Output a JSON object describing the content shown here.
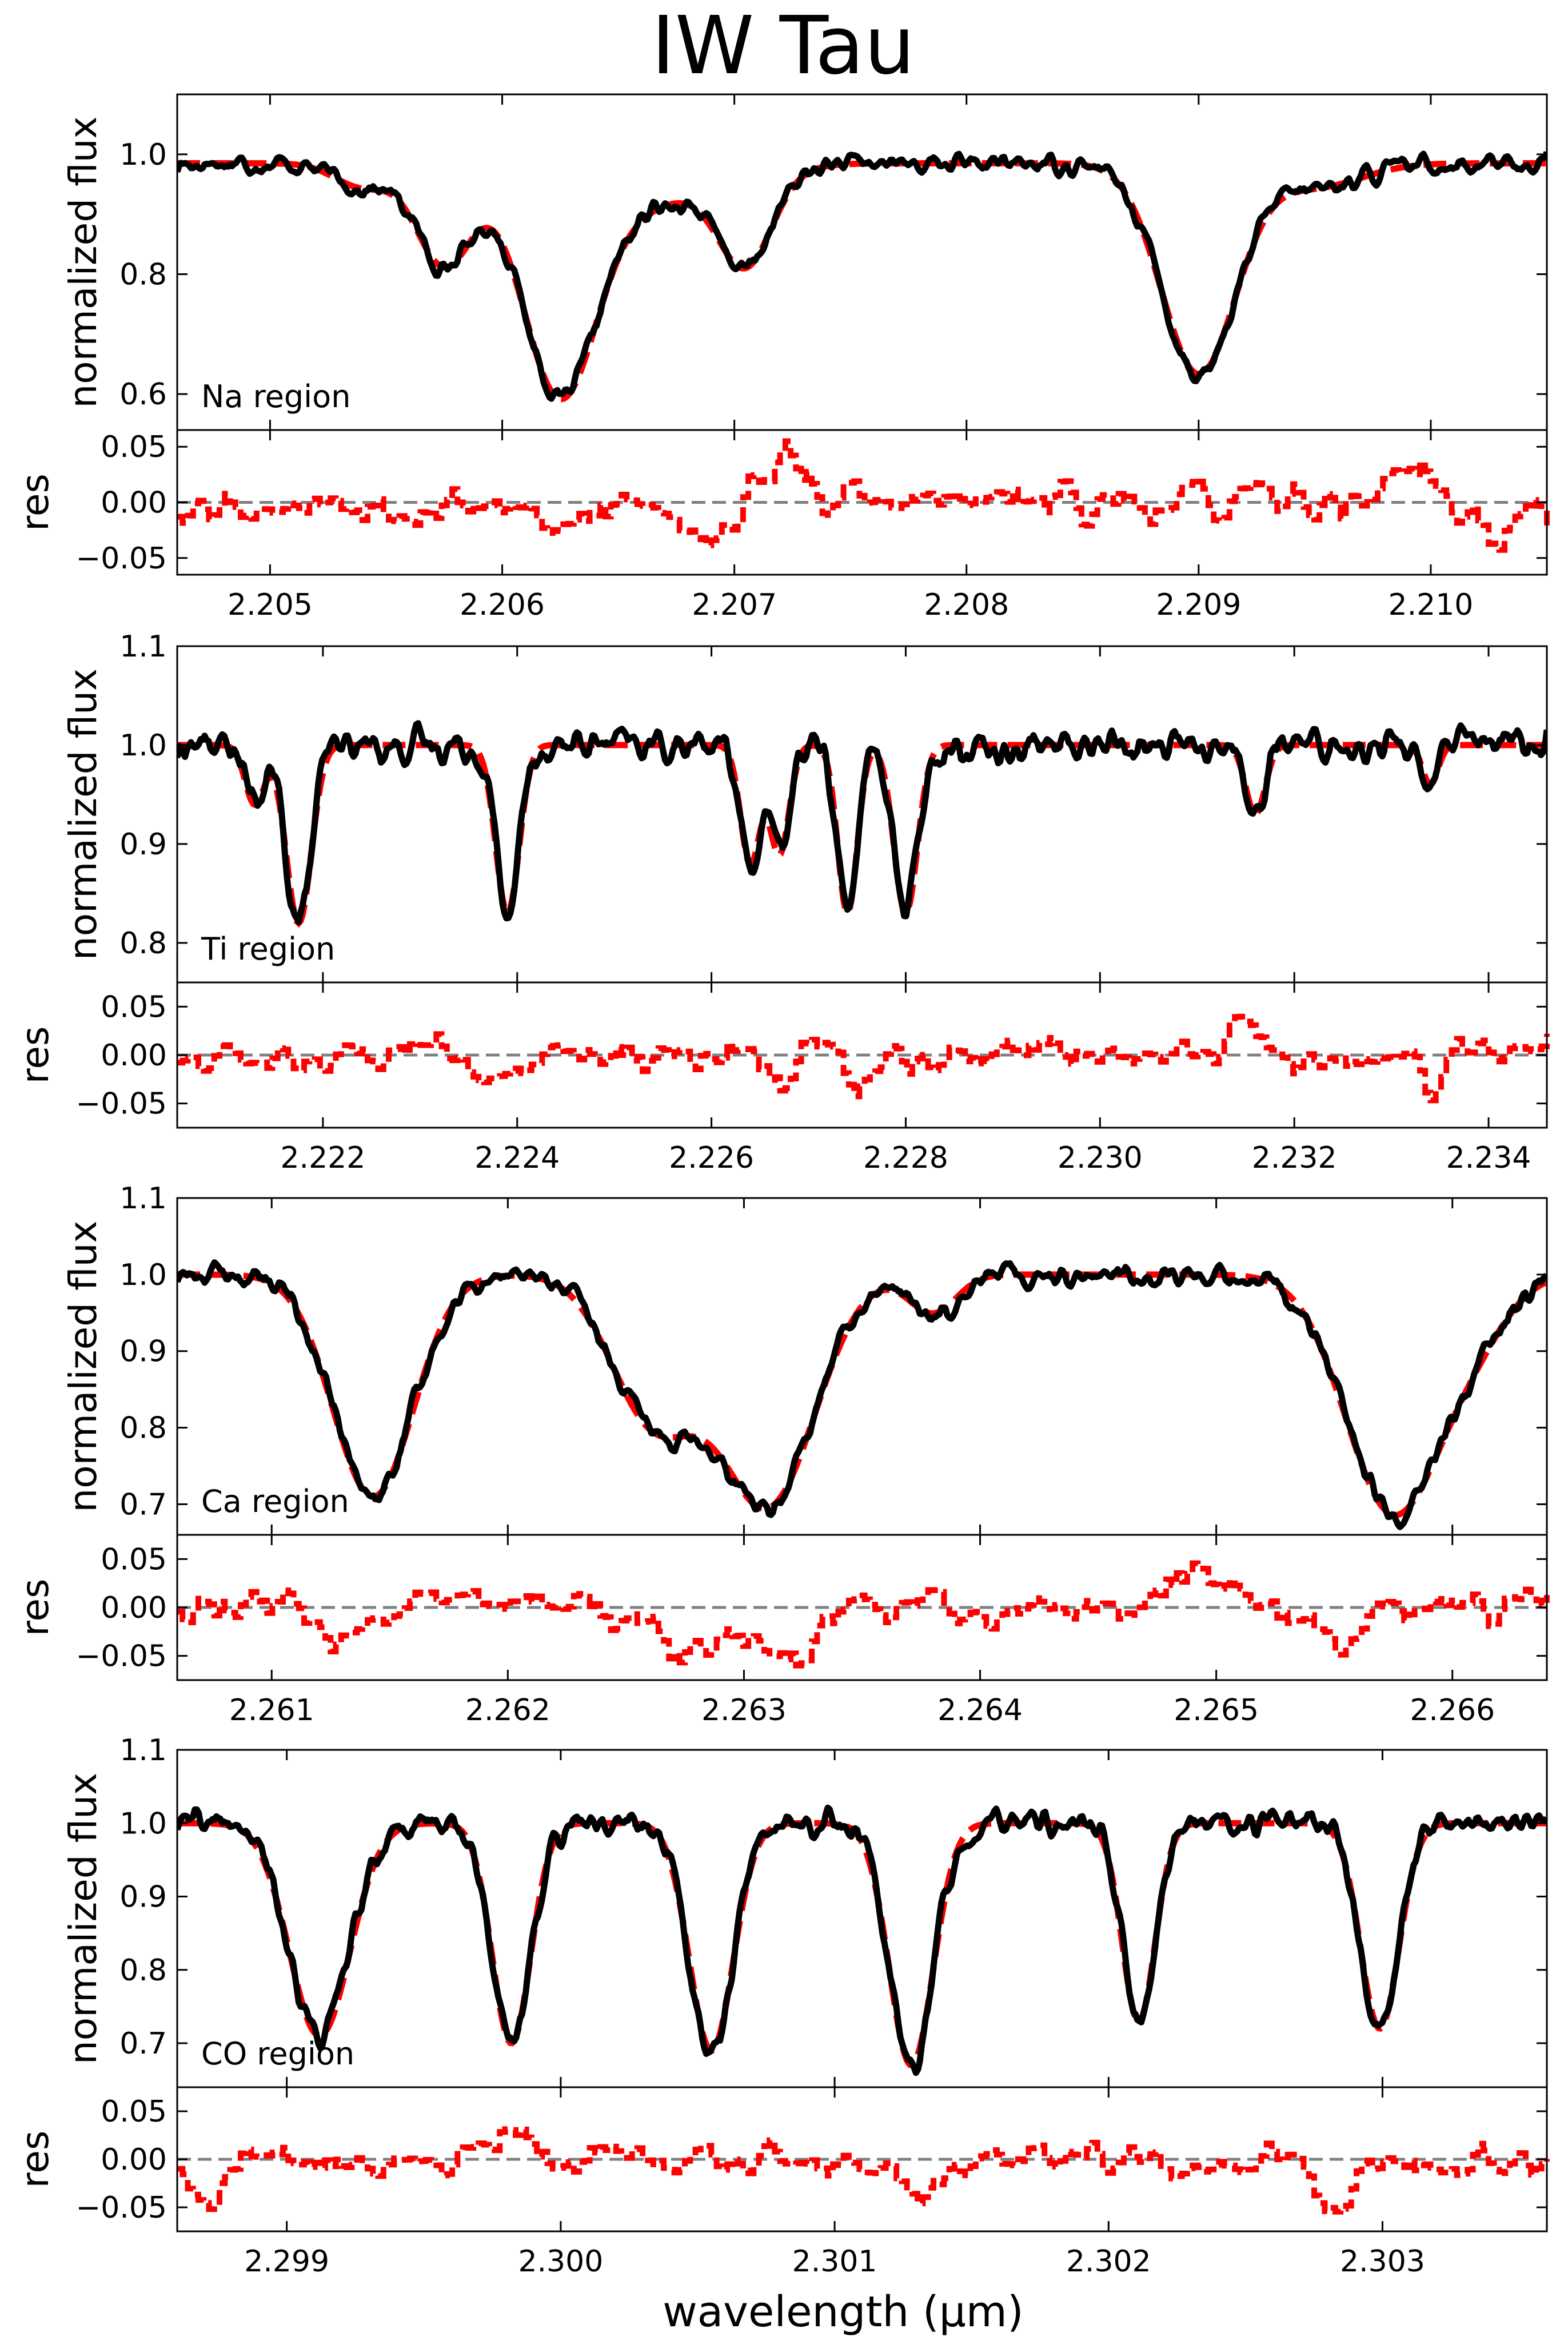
{
  "figure": {
    "title": "IW Tau",
    "xlabel": "wavelength (μm)"
  },
  "colors": {
    "data": "#000000",
    "model": "#ff0000",
    "zero_line": "#808080",
    "axes": "#000000"
  },
  "chart_data": [
    {
      "type": "line",
      "panel": "Na region",
      "region_label": "Na region",
      "ylabel": "normalized flux",
      "res_ylabel": "res",
      "xlim": [
        2.2046,
        2.2105
      ],
      "ylim": [
        0.54,
        1.1
      ],
      "yticks": [
        0.6,
        0.8,
        1.0
      ],
      "ytick_labels": [
        "0.6",
        "0.8",
        "1.0"
      ],
      "xticks": [
        2.205,
        2.206,
        2.207,
        2.208,
        2.209,
        2.21
      ],
      "xtick_labels": [
        "2.205",
        "2.206",
        "2.207",
        "2.208",
        "2.209",
        "2.210"
      ],
      "res_ylim": [
        -0.065,
        0.065
      ],
      "res_yticks": [
        0.05,
        0.0,
        -0.05
      ],
      "res_ytick_labels": [
        "0.05",
        "0.00",
        "−0.05"
      ],
      "baseline": 0.985,
      "lines": [
        {
          "center": 2.2054,
          "depth": 0.04,
          "width": 0.00012
        },
        {
          "center": 2.20575,
          "depth": 0.17,
          "width": 0.00012
        },
        {
          "center": 2.20625,
          "depth": 0.39,
          "width": 0.00016
        },
        {
          "center": 2.2066,
          "depth": 0.05,
          "width": 0.00015
        },
        {
          "center": 2.20705,
          "depth": 0.13,
          "width": 0.00011
        },
        {
          "center": 2.20695,
          "depth": 0.05,
          "width": 0.0002
        },
        {
          "center": 2.209,
          "depth": 0.35,
          "width": 0.00016
        },
        {
          "center": 2.2095,
          "depth": 0.04,
          "width": 0.0002
        }
      ],
      "res_features": [
        {
          "center": 2.20625,
          "amp": -0.03,
          "width": 0.0001
        },
        {
          "center": 2.2072,
          "amp": 0.04,
          "width": 0.0001
        },
        {
          "center": 2.2069,
          "amp": -0.025,
          "width": 0.00012
        },
        {
          "center": 2.2099,
          "amp": 0.03,
          "width": 0.0001
        },
        {
          "center": 2.2103,
          "amp": -0.03,
          "width": 0.0001
        }
      ]
    },
    {
      "type": "line",
      "panel": "Ti region",
      "region_label": "Ti region",
      "ylabel": "normalized flux",
      "res_ylabel": "res",
      "xlim": [
        2.2205,
        2.2346
      ],
      "ylim": [
        0.76,
        1.1
      ],
      "yticks": [
        0.8,
        0.9,
        1.0,
        1.1
      ],
      "ytick_labels": [
        "0.8",
        "0.9",
        "1.0",
        "1.1"
      ],
      "xticks": [
        2.222,
        2.224,
        2.226,
        2.228,
        2.23,
        2.232,
        2.234
      ],
      "xtick_labels": [
        "2.222",
        "2.224",
        "2.226",
        "2.228",
        "2.230",
        "2.232",
        "2.234"
      ],
      "res_ylim": [
        -0.075,
        0.075
      ],
      "res_yticks": [
        0.05,
        0.0,
        -0.05
      ],
      "res_ytick_labels": [
        "0.05",
        "0.00",
        "−0.05"
      ],
      "baseline": 1.0,
      "lines": [
        {
          "center": 2.2213,
          "depth": 0.06,
          "width": 0.0001
        },
        {
          "center": 2.22175,
          "depth": 0.18,
          "width": 0.00013
        },
        {
          "center": 2.2239,
          "depth": 0.17,
          "width": 0.00012
        },
        {
          "center": 2.2264,
          "depth": 0.12,
          "width": 0.0001
        },
        {
          "center": 2.2267,
          "depth": 0.11,
          "width": 0.0001
        },
        {
          "center": 2.2274,
          "depth": 0.17,
          "width": 0.0001
        },
        {
          "center": 2.228,
          "depth": 0.17,
          "width": 0.00012
        },
        {
          "center": 2.2316,
          "depth": 0.07,
          "width": 0.0001
        },
        {
          "center": 2.2334,
          "depth": 0.04,
          "width": 8e-05
        }
      ],
      "res_features": [
        {
          "center": 2.2237,
          "amp": -0.04,
          "width": 0.0001
        },
        {
          "center": 2.2267,
          "amp": -0.04,
          "width": 0.0001
        },
        {
          "center": 2.2275,
          "amp": -0.05,
          "width": 0.0001
        },
        {
          "center": 2.2314,
          "amp": 0.04,
          "width": 0.0001
        },
        {
          "center": 2.2334,
          "amp": -0.05,
          "width": 8e-05
        }
      ]
    },
    {
      "type": "line",
      "panel": "Ca region",
      "region_label": "Ca region",
      "ylabel": "normalized flux",
      "res_ylabel": "res",
      "xlim": [
        2.2606,
        2.2664
      ],
      "ylim": [
        0.66,
        1.1
      ],
      "yticks": [
        0.7,
        0.8,
        0.9,
        1.0,
        1.1
      ],
      "ytick_labels": [
        "0.7",
        "0.8",
        "0.9",
        "1.0",
        "1.1"
      ],
      "xticks": [
        2.261,
        2.262,
        2.263,
        2.264,
        2.265,
        2.266
      ],
      "xtick_labels": [
        "2.261",
        "2.262",
        "2.263",
        "2.264",
        "2.265",
        "2.266"
      ],
      "res_ylim": [
        -0.075,
        0.075
      ],
      "res_yticks": [
        0.05,
        0.0,
        -0.05
      ],
      "res_ytick_labels": [
        "0.05",
        "0.00",
        "−0.05"
      ],
      "baseline": 1.0,
      "lines": [
        {
          "center": 2.26143,
          "depth": 0.29,
          "width": 0.00017
        },
        {
          "center": 2.26262,
          "depth": 0.19,
          "width": 0.00018
        },
        {
          "center": 2.2631,
          "depth": 0.3,
          "width": 0.0002
        },
        {
          "center": 2.2638,
          "depth": 0.05,
          "width": 0.0001
        },
        {
          "center": 2.26575,
          "depth": 0.31,
          "width": 0.0002
        },
        {
          "center": 2.2661,
          "depth": 0.06,
          "width": 0.00015
        }
      ],
      "res_features": [
        {
          "center": 2.2613,
          "amp": -0.04,
          "width": 0.0001
        },
        {
          "center": 2.2628,
          "amp": -0.05,
          "width": 0.00015
        },
        {
          "center": 2.2632,
          "amp": -0.05,
          "width": 0.0001
        },
        {
          "center": 2.2649,
          "amp": 0.05,
          "width": 0.0001
        },
        {
          "center": 2.2655,
          "amp": -0.04,
          "width": 0.0001
        }
      ]
    },
    {
      "type": "line",
      "panel": "CO region",
      "region_label": "CO region",
      "ylabel": "normalized flux",
      "res_ylabel": "res",
      "xlim": [
        2.2986,
        2.3036
      ],
      "ylim": [
        0.64,
        1.1
      ],
      "yticks": [
        0.7,
        0.8,
        0.9,
        1.0,
        1.1
      ],
      "ytick_labels": [
        "0.7",
        "0.8",
        "0.9",
        "1.0",
        "1.1"
      ],
      "xticks": [
        2.299,
        2.3,
        2.301,
        2.302,
        2.303
      ],
      "xtick_labels": [
        "2.299",
        "2.300",
        "2.301",
        "2.302",
        "2.303"
      ],
      "res_ylim": [
        -0.075,
        0.075
      ],
      "res_yticks": [
        0.05,
        0.0,
        -0.05
      ],
      "res_ytick_labels": [
        "0.05",
        "0.00",
        "−0.05"
      ],
      "baseline": 1.0,
      "lines": [
        {
          "center": 2.29912,
          "depth": 0.29,
          "width": 0.00011
        },
        {
          "center": 2.29982,
          "depth": 0.3,
          "width": 7e-05
        },
        {
          "center": 2.30055,
          "depth": 0.31,
          "width": 8e-05
        },
        {
          "center": 2.30128,
          "depth": 0.33,
          "width": 8e-05
        },
        {
          "center": 2.30211,
          "depth": 0.27,
          "width": 6e-05
        },
        {
          "center": 2.30299,
          "depth": 0.28,
          "width": 7e-05
        }
      ],
      "res_features": [
        {
          "center": 2.2987,
          "amp": -0.04,
          "width": 6e-05
        },
        {
          "center": 2.2998,
          "amp": 0.04,
          "width": 6e-05
        },
        {
          "center": 2.3013,
          "amp": -0.03,
          "width": 7e-05
        },
        {
          "center": 2.3028,
          "amp": -0.05,
          "width": 6e-05
        }
      ]
    }
  ]
}
